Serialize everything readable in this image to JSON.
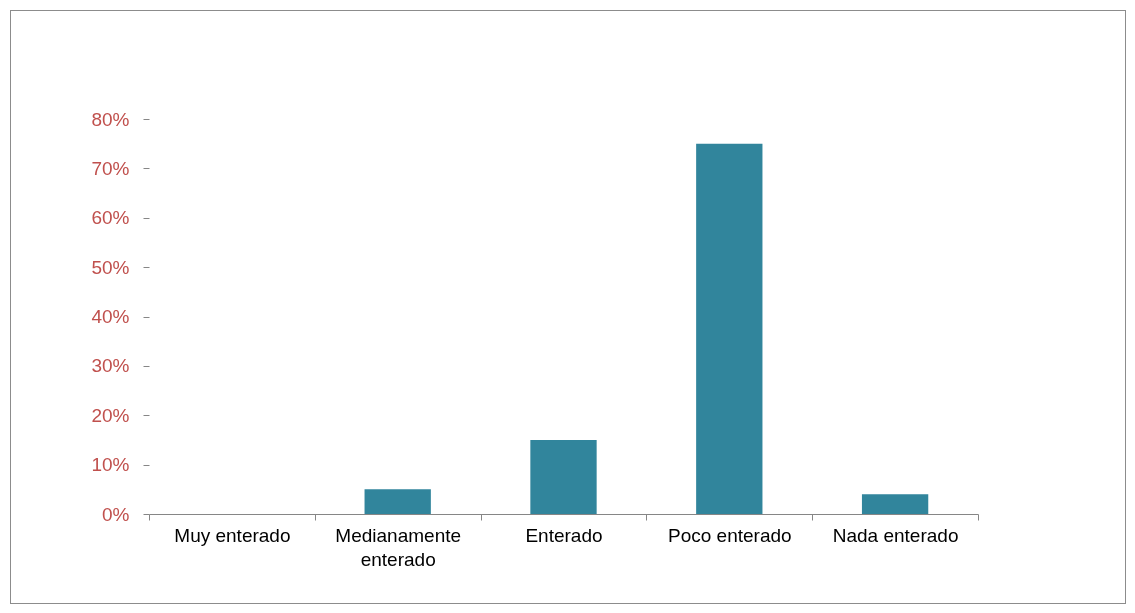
{
  "chart_data": {
    "type": "bar",
    "categories": [
      "Muy enterado",
      "Medianamente enterado",
      "Enterado",
      "Poco enterado",
      "Nada  enterado"
    ],
    "values": [
      0,
      5,
      15,
      75,
      4
    ],
    "color": "#31859c",
    "ylim": [
      0,
      80
    ],
    "yticks": [
      {
        "value": 0,
        "label": "0%"
      },
      {
        "value": 10,
        "label": "10%"
      },
      {
        "value": 20,
        "label": "20%"
      },
      {
        "value": 30,
        "label": "30%"
      },
      {
        "value": 40,
        "label": "40%"
      },
      {
        "value": 50,
        "label": "50%"
      },
      {
        "value": 60,
        "label": "60%"
      },
      {
        "value": 70,
        "label": "70%"
      },
      {
        "value": 80,
        "label": "80%"
      }
    ],
    "grid": false
  }
}
